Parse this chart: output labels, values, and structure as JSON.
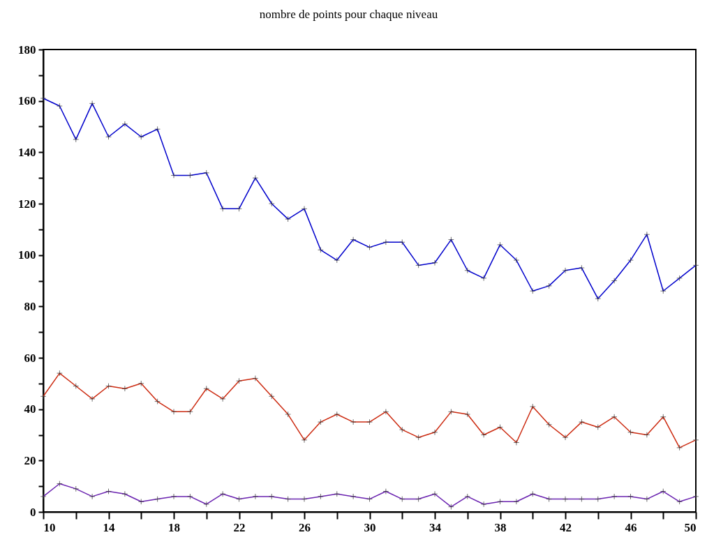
{
  "chart_data": {
    "type": "line",
    "title": "nombre de points pour chaque niveau",
    "x": [
      10,
      11,
      12,
      13,
      14,
      15,
      16,
      17,
      18,
      19,
      20,
      21,
      22,
      23,
      24,
      25,
      26,
      27,
      28,
      29,
      30,
      31,
      32,
      33,
      34,
      35,
      36,
      37,
      38,
      39,
      40,
      41,
      42,
      43,
      44,
      45,
      46,
      47,
      48,
      49,
      50
    ],
    "series": [
      {
        "color": "#0000cc",
        "values": [
          161,
          158,
          145,
          159,
          146,
          151,
          146,
          149,
          131,
          131,
          132,
          118,
          118,
          130,
          120,
          114,
          118,
          102,
          98,
          106,
          103,
          105,
          105,
          96,
          97,
          106,
          94,
          91,
          104,
          98,
          86,
          88,
          94,
          95,
          83,
          90,
          98,
          108,
          86,
          91,
          96
        ]
      },
      {
        "color": "#cc2a10",
        "values": [
          45,
          54,
          49,
          44,
          49,
          48,
          50,
          43,
          39,
          39,
          48,
          44,
          51,
          52,
          45,
          38,
          28,
          35,
          38,
          35,
          35,
          39,
          32,
          29,
          31,
          39,
          38,
          30,
          33,
          27,
          41,
          34,
          29,
          35,
          33,
          37,
          31,
          30,
          37,
          25,
          28
        ]
      },
      {
        "color": "#6a22b0",
        "values": [
          6,
          11,
          9,
          6,
          8,
          7,
          4,
          5,
          6,
          6,
          3,
          7,
          5,
          6,
          6,
          5,
          5,
          6,
          7,
          6,
          5,
          8,
          5,
          5,
          7,
          2,
          6,
          3,
          4,
          4,
          7,
          5,
          5,
          5,
          5,
          6,
          6,
          5,
          8,
          4,
          6
        ]
      }
    ],
    "xlim": [
      10,
      50
    ],
    "xticks": [
      10,
      {
        "value": 12,
        "label": null
      },
      14,
      {
        "value": 16,
        "label": null
      },
      18,
      {
        "value": 20,
        "label": null
      },
      22,
      {
        "value": 24,
        "label": null
      },
      26,
      {
        "value": 28,
        "label": null
      },
      30,
      {
        "value": 32,
        "label": null
      },
      34,
      {
        "value": 36,
        "label": null
      },
      38,
      {
        "value": 40,
        "label": null
      },
      42,
      {
        "value": 44,
        "label": null
      },
      46,
      {
        "value": 48,
        "label": null
      },
      50
    ],
    "ylim": [
      0,
      180
    ],
    "yticks": [
      0,
      {
        "value": 10,
        "label": null
      },
      20,
      {
        "value": 30,
        "label": null
      },
      40,
      {
        "value": 50,
        "label": null
      },
      60,
      {
        "value": 70,
        "label": null
      },
      80,
      {
        "value": 90,
        "label": null
      },
      100,
      {
        "value": 110,
        "label": null
      },
      120,
      {
        "value": 130,
        "label": null
      },
      140,
      {
        "value": 150,
        "label": null
      },
      160,
      {
        "value": 170,
        "label": null
      },
      180
    ],
    "grid": false,
    "marker": "cross",
    "line_style": "solid"
  }
}
